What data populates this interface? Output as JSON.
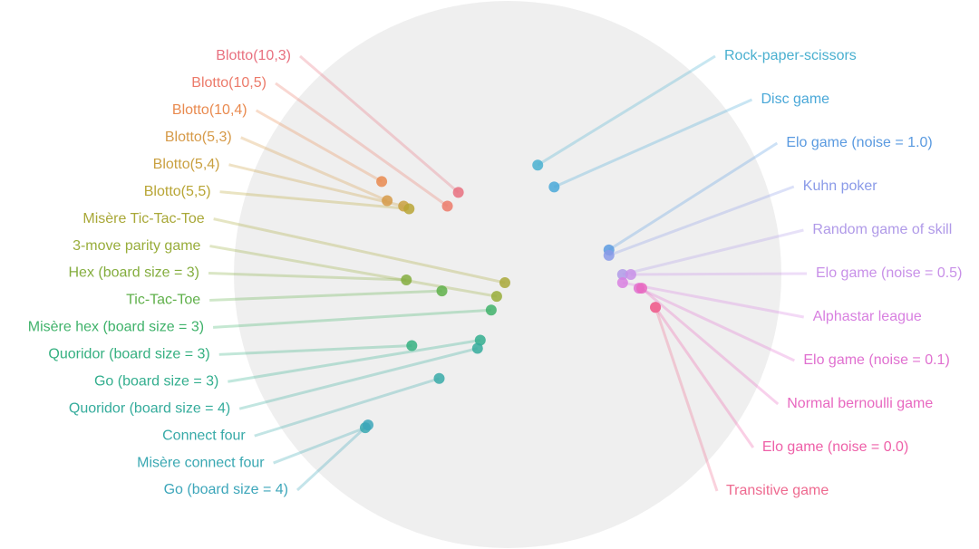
{
  "chart_data": {
    "type": "scatter",
    "xlim": [
      -1,
      1
    ],
    "ylim": [
      -1,
      1
    ],
    "series": [
      {
        "name": "Blotto(10,3)",
        "color": "#e8707f",
        "x": [
          -0.18
        ],
        "values": [
          0.3
        ]
      },
      {
        "name": "Blotto(10,5)",
        "color": "#ec7a6a",
        "x": [
          -0.22
        ],
        "values": [
          0.25
        ]
      },
      {
        "name": "Blotto(10,4)",
        "color": "#e98a4f",
        "x": [
          -0.46
        ],
        "values": [
          0.34
        ]
      },
      {
        "name": "Blotto(5,3)",
        "color": "#d69a48",
        "x": [
          -0.44
        ],
        "values": [
          0.27
        ]
      },
      {
        "name": "Blotto(5,4)",
        "color": "#c9a040",
        "x": [
          -0.38
        ],
        "values": [
          0.25
        ]
      },
      {
        "name": "Blotto(5,5)",
        "color": "#b8a535",
        "x": [
          -0.36
        ],
        "values": [
          0.24
        ]
      },
      {
        "name": "Misère Tic-Tac-Toe",
        "color": "#a9a838",
        "x": [
          -0.01
        ],
        "values": [
          -0.03
        ]
      },
      {
        "name": "3-move parity game",
        "color": "#98ad3a",
        "x": [
          -0.04
        ],
        "values": [
          -0.08
        ]
      },
      {
        "name": "Hex (board size = 3)",
        "color": "#84ad3e",
        "x": [
          -0.37
        ],
        "values": [
          -0.02
        ]
      },
      {
        "name": "Tic-Tac-Toe",
        "color": "#5fb04a",
        "x": [
          -0.24
        ],
        "values": [
          -0.06
        ]
      },
      {
        "name": "Misère hex (board size = 3)",
        "color": "#3fb26a",
        "x": [
          -0.06
        ],
        "values": [
          -0.13
        ]
      },
      {
        "name": "Quoridor (board size = 3)",
        "color": "#35b080",
        "x": [
          -0.35
        ],
        "values": [
          -0.26
        ]
      },
      {
        "name": "Go (board size = 3)",
        "color": "#33ae8e",
        "x": [
          -0.1
        ],
        "values": [
          -0.24
        ]
      },
      {
        "name": "Quoridor (board size = 4)",
        "color": "#35ac9c",
        "x": [
          -0.11
        ],
        "values": [
          -0.27
        ]
      },
      {
        "name": "Connect four",
        "color": "#38aaa8",
        "x": [
          -0.25
        ],
        "values": [
          -0.38
        ]
      },
      {
        "name": "Misère connect four",
        "color": "#3aa8b2",
        "x": [
          -0.52
        ],
        "values": [
          -0.56
        ]
      },
      {
        "name": "Go (board size = 4)",
        "color": "#3ca6ba",
        "x": [
          -0.51
        ],
        "values": [
          -0.55
        ]
      },
      {
        "name": "Rock-paper-scissors",
        "color": "#4ab0d0",
        "x": [
          0.11
        ],
        "values": [
          0.4
        ]
      },
      {
        "name": "Disc game",
        "color": "#4aa8d8",
        "x": [
          0.17
        ],
        "values": [
          0.32
        ]
      },
      {
        "name": "Elo game (noise = 1.0)",
        "color": "#5a9ae0",
        "x": [
          0.37
        ],
        "values": [
          0.09
        ]
      },
      {
        "name": "Kuhn poker",
        "color": "#8a9ae8",
        "x": [
          0.37
        ],
        "values": [
          0.07
        ]
      },
      {
        "name": "Random game of skill",
        "color": "#b09ae8",
        "x": [
          0.42
        ],
        "values": [
          0.0
        ]
      },
      {
        "name": "Elo game (noise = 0.5)",
        "color": "#c890e8",
        "x": [
          0.45
        ],
        "values": [
          0.0
        ]
      },
      {
        "name": "Alphastar league",
        "color": "#d880e0",
        "x": [
          0.42
        ],
        "values": [
          -0.03
        ]
      },
      {
        "name": "Elo game (noise = 0.1)",
        "color": "#e070d0",
        "x": [
          0.48
        ],
        "values": [
          -0.05
        ]
      },
      {
        "name": "Normal bernoulli game",
        "color": "#e868c0",
        "x": [
          0.49
        ],
        "values": [
          -0.05
        ]
      },
      {
        "name": "Elo game (noise = 0.0)",
        "color": "#ee60a8",
        "x": [
          0.54
        ],
        "values": [
          -0.12
        ]
      },
      {
        "name": "Transitive game",
        "color": "#ee6a90",
        "x": [
          0.54
        ],
        "values": [
          -0.12
        ]
      }
    ]
  }
}
